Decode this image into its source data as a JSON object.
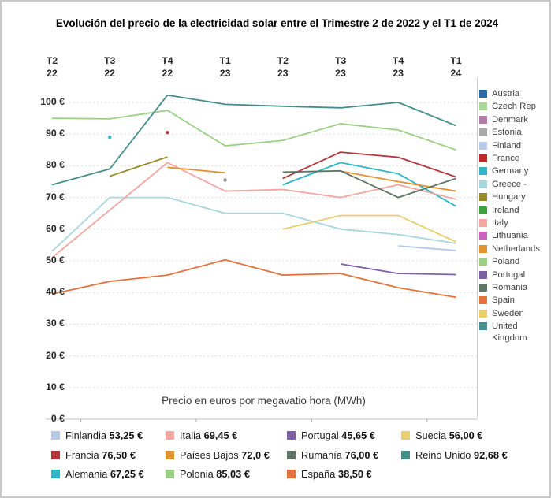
{
  "title": "Evolución del precio de la electricidad solar entre el Trimestre 2 de 2022 y el T1 de 2024",
  "axis_title": "Precio en euros por megavatio hora (MWh)",
  "x_labels": [
    {
      "quarter": "T2",
      "year": "22"
    },
    {
      "quarter": "T3",
      "year": "22"
    },
    {
      "quarter": "T4",
      "year": "22"
    },
    {
      "quarter": "T1",
      "year": "23"
    },
    {
      "quarter": "T2",
      "year": "23"
    },
    {
      "quarter": "T3",
      "year": "23"
    },
    {
      "quarter": "T4",
      "year": "23"
    },
    {
      "quarter": "T1",
      "year": "24"
    }
  ],
  "y_ticks": {
    "values": [
      0,
      10,
      20,
      30,
      40,
      50,
      60,
      70,
      80,
      90,
      100
    ],
    "labels": [
      "0 €",
      "10 €",
      "20 €",
      "30 €",
      "40 €",
      "50 €",
      "60 €",
      "70 €",
      "80 €",
      "90 €",
      "100 €"
    ]
  },
  "chart_data": {
    "type": "line",
    "title": "Evolución del precio de la electricidad solar entre el Trimestre 2 de 2022 y el T1 de 2024",
    "xlabel": "Precio en euros por megavatio hora (MWh)",
    "ylabel": "€ / MWh",
    "ylim": [
      0,
      105
    ],
    "grid": true,
    "legend_position": "right",
    "categories": [
      "T2 22",
      "T3 22",
      "T4 22",
      "T1 23",
      "T2 23",
      "T3 23",
      "T4 23",
      "T1 24"
    ],
    "series": [
      {
        "name": "Estonia",
        "color": "#8f8c90",
        "values": [
          null,
          null,
          null,
          75.5,
          null,
          null,
          null,
          null
        ]
      },
      {
        "name": "Finland",
        "color": "#b8c9e8",
        "values": [
          null,
          null,
          null,
          null,
          null,
          null,
          54.7,
          53.25
        ]
      },
      {
        "name": "France",
        "color": "#b43a40",
        "values": [
          null,
          null,
          90.5,
          null,
          76,
          84.3,
          82.7,
          76.5
        ]
      },
      {
        "name": "Germany",
        "color": "#2fb7c5",
        "values": [
          null,
          89,
          null,
          null,
          74,
          81,
          77.5,
          67.25
        ]
      },
      {
        "name": "Greece",
        "color": "#a9d6de",
        "values": [
          53,
          70,
          70,
          65,
          65,
          60,
          58.3,
          55.5
        ]
      },
      {
        "name": "Hungary",
        "color": "#978b21",
        "values": [
          null,
          76.7,
          82.8,
          null,
          null,
          null,
          null,
          null
        ]
      },
      {
        "name": "Italy",
        "color": "#f3a6a2",
        "values": [
          51,
          66,
          81,
          72,
          72.5,
          70,
          74,
          69.45
        ]
      },
      {
        "name": "Netherlands",
        "color": "#e2932f",
        "values": [
          null,
          null,
          79.5,
          77.8,
          null,
          78.3,
          75,
          72
        ]
      },
      {
        "name": "Poland",
        "color": "#9cd086",
        "values": [
          95,
          94.8,
          97.5,
          86.3,
          88,
          93.3,
          91.3,
          85.03
        ]
      },
      {
        "name": "Portugal",
        "color": "#7d60a8",
        "values": [
          null,
          null,
          null,
          null,
          null,
          49,
          46,
          45.65
        ]
      },
      {
        "name": "Romania",
        "color": "#5e7466",
        "values": [
          null,
          null,
          null,
          null,
          78,
          78.4,
          70,
          76
        ]
      },
      {
        "name": "Spain",
        "color": "#e5713b",
        "values": [
          39.5,
          43.5,
          45.5,
          50.3,
          45.5,
          46,
          41.5,
          38.5
        ]
      },
      {
        "name": "Sweden",
        "color": "#e9cf6e",
        "values": [
          null,
          null,
          null,
          null,
          60,
          64.3,
          64.3,
          56
        ]
      },
      {
        "name": "United Kingdom",
        "color": "#448e8c",
        "values": [
          74,
          79,
          102.3,
          99.4,
          98.8,
          98.3,
          100,
          92.68
        ]
      }
    ]
  },
  "right_legend": [
    {
      "label": "Austria",
      "color": "#2b6ba8"
    },
    {
      "label": "Czech Rep",
      "color": "#a8d796"
    },
    {
      "label": "Denmark",
      "color": "#b07ba4"
    },
    {
      "label": "Estonia",
      "color": "#a9a9a9"
    },
    {
      "label": "Finland",
      "color": "#b8c9e8"
    },
    {
      "label": "France",
      "color": "#c2272d"
    },
    {
      "label": "Germany",
      "color": "#2fb7c5"
    },
    {
      "label": "Greece -",
      "color": "#a9d6de"
    },
    {
      "label": "Hungary",
      "color": "#978b21"
    },
    {
      "label": "Ireland",
      "color": "#3fa23f"
    },
    {
      "label": "Italy",
      "color": "#f3a6a2"
    },
    {
      "label": "Lithuania",
      "color": "#ca62c0"
    },
    {
      "label": "Netherlands",
      "color": "#e2932f"
    },
    {
      "label": "Poland",
      "color": "#9cd086"
    },
    {
      "label": "Portugal",
      "color": "#7d60a8"
    },
    {
      "label": "Romania",
      "color": "#5e7466"
    },
    {
      "label": "Spain",
      "color": "#e5713b"
    },
    {
      "label": "Sweden",
      "color": "#e9cf6e"
    },
    {
      "label": "United Kingdom",
      "color": "#448e8c"
    }
  ],
  "bottom_legend": [
    {
      "label": "Finlandia",
      "value": "53,25 €",
      "color": "#b8c9e8"
    },
    {
      "label": "Italia",
      "value": "69,45 €",
      "color": "#f3a6a2"
    },
    {
      "label": "Portugal",
      "value": "45,65 €",
      "color": "#7d60a8"
    },
    {
      "label": "Suecia",
      "value": "56,00 €",
      "color": "#e9cf6e"
    },
    {
      "label": "Francia",
      "value": "76,50 €",
      "color": "#b43339"
    },
    {
      "label": "Países Bajos",
      "value": "72,0 €",
      "color": "#e2932f"
    },
    {
      "label": "Rumanía",
      "value": "76,00 €",
      "color": "#5e7466"
    },
    {
      "label": "Reino Unido",
      "value": "92,68 €",
      "color": "#448e8c"
    },
    {
      "label": "Alemania",
      "value": "67,25 €",
      "color": "#2fb7c5"
    },
    {
      "label": "Polonia",
      "value": "85,03 €",
      "color": "#9cd086"
    },
    {
      "label": "España",
      "value": "38,50 €",
      "color": "#e5713b"
    }
  ]
}
